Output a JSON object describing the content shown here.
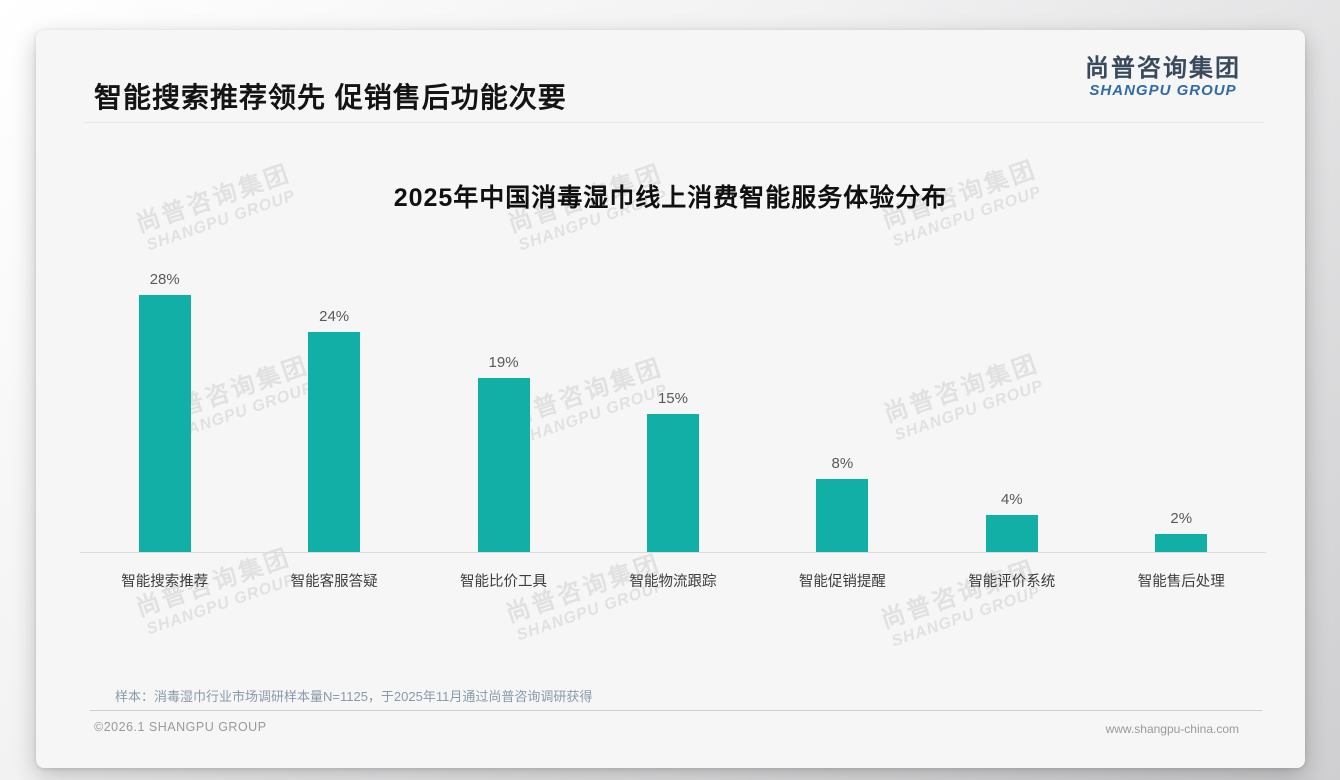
{
  "header": {
    "title": "智能搜索推荐领先 促销售后功能次要",
    "logo_cn": "尚普咨询集团",
    "logo_en": "SHANGPU GROUP"
  },
  "chart_data": {
    "type": "bar",
    "title": "2025年中国消毒湿巾线上消费智能服务体验分布",
    "categories": [
      "智能搜索推荐",
      "智能客服答疑",
      "智能比价工具",
      "智能物流跟踪",
      "智能促销提醒",
      "智能评价系统",
      "智能售后处理"
    ],
    "values": [
      28,
      24,
      19,
      15,
      8,
      4,
      2
    ],
    "value_suffix": "%",
    "bar_color": "#11AFA6",
    "value_label_color": "#595959",
    "ylim": [
      0,
      30
    ],
    "grid": false,
    "legend": "none",
    "xlabel": "",
    "ylabel": ""
  },
  "footnote": "样本：消毒湿巾行业市场调研样本量N=1125，于2025年11月通过尚普咨询调研获得",
  "footer": {
    "copyright": "©2026.1 SHANGPU GROUP",
    "website": "www.shangpu-china.com"
  },
  "watermark": {
    "line1": "尚普咨询集团",
    "line2": "SHANGPU GROUP"
  }
}
